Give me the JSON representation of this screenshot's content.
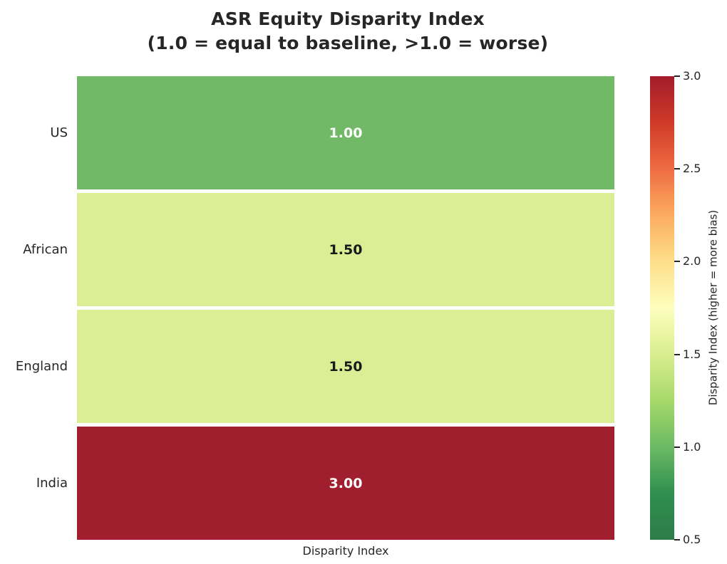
{
  "title": {
    "line1": "ASR Equity Disparity Index",
    "line2": "(1.0 = equal to baseline, >1.0 = worse)"
  },
  "chart_data": {
    "type": "heatmap",
    "title": "ASR Equity Disparity Index (1.0 = equal to baseline, >1.0 = worse)",
    "xlabel": "Disparity Index",
    "categories": [
      "US",
      "African",
      "England",
      "India"
    ],
    "values": [
      1.0,
      1.5,
      1.5,
      3.0
    ],
    "rows": [
      {
        "label": "US",
        "value": "1.00",
        "numeric": 1.0,
        "color": "#72b967",
        "text_color": "#ffffff"
      },
      {
        "label": "African",
        "value": "1.50",
        "numeric": 1.5,
        "color": "#dbee95",
        "text_color": "#1a1a1a"
      },
      {
        "label": "England",
        "value": "1.50",
        "numeric": 1.5,
        "color": "#dbee95",
        "text_color": "#1a1a1a"
      },
      {
        "label": "India",
        "value": "3.00",
        "numeric": 3.0,
        "color": "#a01e2e",
        "text_color": "#ffffff"
      }
    ],
    "colorbar": {
      "label": "Disparity Index (higher = more bias)",
      "vmin": 0.5,
      "vmax": 3.0,
      "ticks": [
        "3.0",
        "2.5",
        "2.0",
        "1.5",
        "1.0",
        "0.5"
      ],
      "gradient_top_to_bottom": [
        "#a31c2c",
        "#cf3a28",
        "#ef6c42",
        "#fcac60",
        "#fedf8a",
        "#fefebd",
        "#d9ee8f",
        "#a6d96a",
        "#6cba64",
        "#2f8f50",
        "#2e7c48"
      ]
    }
  }
}
